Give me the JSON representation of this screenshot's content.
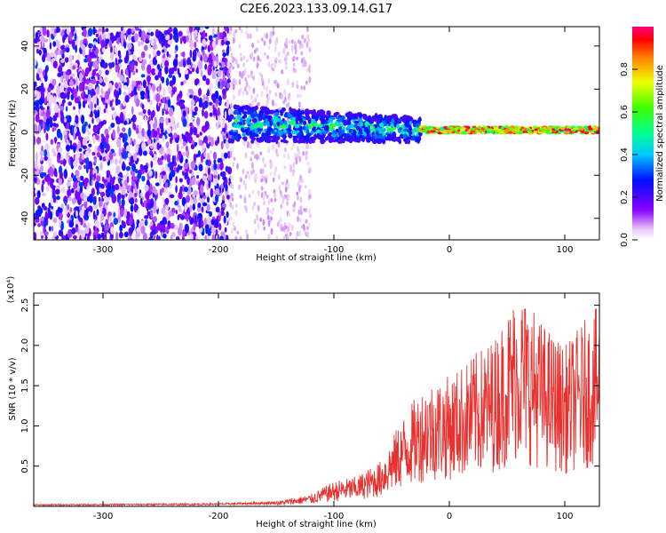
{
  "title": "C2E6.2023.133.09.14.G17",
  "chart_data": [
    {
      "type": "heatmap",
      "xlabel": "Height of straight line (km)",
      "ylabel": "Frequency (Hz)",
      "xlim": [
        -360,
        130
      ],
      "ylim": [
        -50,
        49
      ],
      "x_ticks": [
        -300,
        -200,
        -100,
        0,
        100
      ],
      "x_tick_labels": [
        "-300",
        "-200",
        "-100",
        "0",
        "100"
      ],
      "y_ticks": [
        -40,
        -20,
        0,
        20,
        40
      ],
      "y_tick_labels": [
        "-40",
        "-20",
        "0",
        "20",
        "40"
      ],
      "colorbar": {
        "label": "Normalized spectral amplitude",
        "range": [
          0,
          1
        ],
        "ticks": [
          0.0,
          0.2,
          0.4,
          0.6,
          0.8
        ],
        "tick_labels": [
          "0.0",
          "0.2",
          "0.4",
          "0.6",
          "0.8"
        ],
        "colormap": "rainbow (white-purple-blue-cyan-green-yellow-orange-red-magenta)"
      },
      "regions": [
        {
          "x_from": -360,
          "x_to": -190,
          "freq_from": -50,
          "freq_to": 49,
          "amplitude": "0.0-0.3 scattered noise"
        },
        {
          "x_from": -190,
          "x_to": -120,
          "freq_from": -50,
          "freq_to": 49,
          "amplitude": "0.0-0.1 faint noise"
        },
        {
          "x_from": -190,
          "x_to": -25,
          "freq_center": 4,
          "freq_width": 12,
          "amplitude": "0.2-0.6"
        },
        {
          "x_from": -25,
          "x_to": 130,
          "freq_center": 1,
          "freq_width": 3,
          "amplitude": "0.5-1.0"
        }
      ]
    },
    {
      "type": "line",
      "xlabel": "Height of straight line (km)",
      "ylabel": "SNR (10 * v/v)",
      "y_multiplier": "(x10⁴)",
      "xlim": [
        -360,
        130
      ],
      "ylim": [
        0,
        2.65
      ],
      "x_ticks": [
        -300,
        -200,
        -100,
        0,
        100
      ],
      "x_tick_labels": [
        "-300",
        "-200",
        "-100",
        "0",
        "100"
      ],
      "y_ticks": [
        0.5,
        1.0,
        1.5,
        2.0,
        2.5
      ],
      "y_tick_labels": [
        "0.5",
        "1.0",
        "1.5",
        "2.0",
        "2.5"
      ],
      "series": [
        {
          "color": "#e8322f",
          "envelope_x": [
            -360,
            -200,
            -150,
            -120,
            -100,
            -80,
            -60,
            -40,
            -20,
            0,
            20,
            40,
            60,
            80,
            100,
            120,
            130
          ],
          "envelope_y": [
            0.02,
            0.03,
            0.05,
            0.12,
            0.25,
            0.3,
            0.45,
            0.9,
            1.25,
            1.3,
            1.5,
            1.7,
            2.2,
            1.85,
            1.6,
            1.9,
            2.0
          ]
        }
      ]
    }
  ]
}
